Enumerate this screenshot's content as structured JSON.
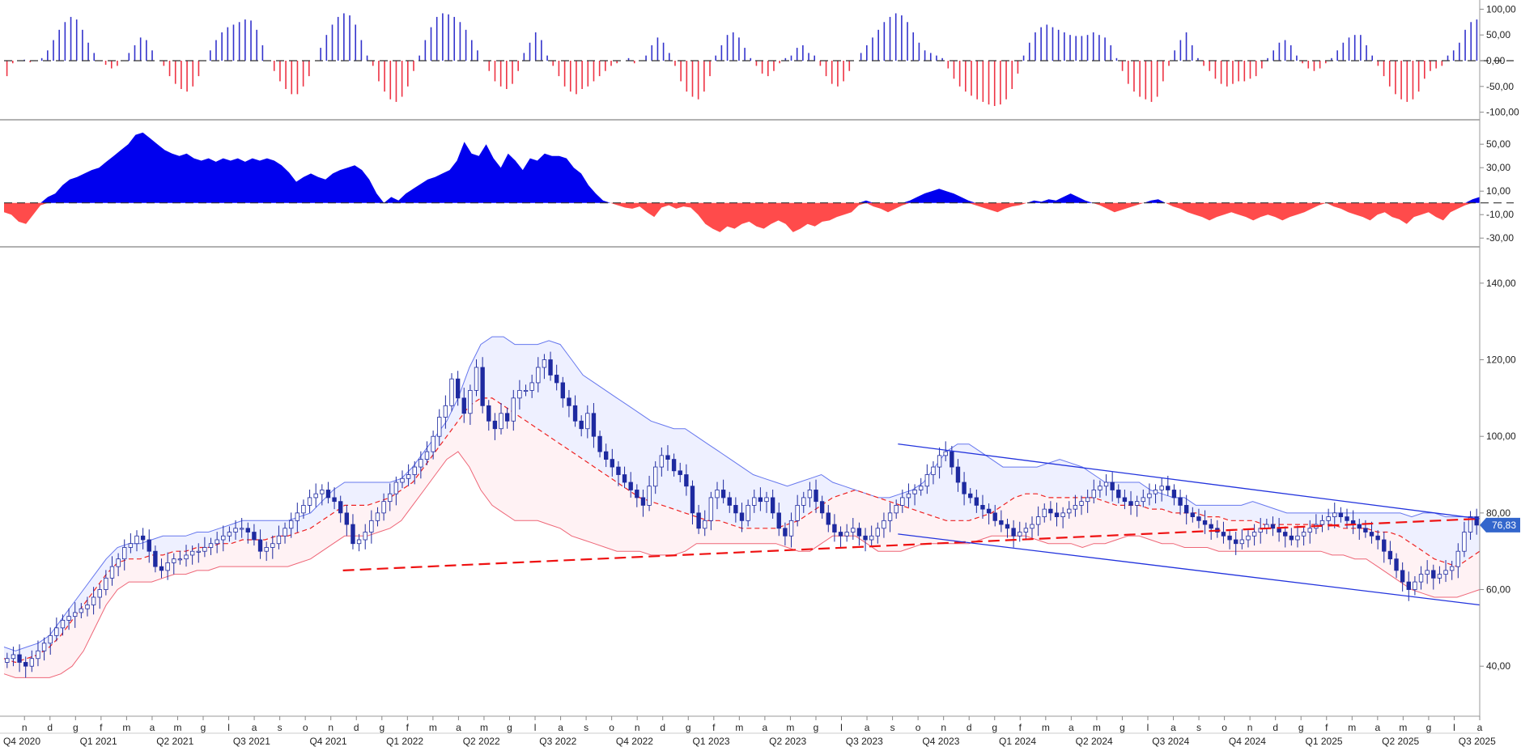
{
  "chart_data": [
    {
      "type": "bar",
      "panel": "oscillator-histogram",
      "y_ticks": [
        "100,00",
        "50,00",
        "0,00",
        "-50,00",
        "-100,00"
      ],
      "y_tick_values": [
        100,
        50,
        0,
        -50,
        -100
      ],
      "ylim": [
        -110,
        110
      ],
      "positive_color": "#3333cc",
      "negative_color": "#ee3344",
      "values": [
        -30,
        -5,
        0,
        2,
        -3,
        0,
        5,
        20,
        40,
        60,
        75,
        85,
        80,
        60,
        35,
        15,
        0,
        -8,
        -15,
        -10,
        0,
        15,
        30,
        45,
        40,
        20,
        0,
        -10,
        -30,
        -45,
        -55,
        -60,
        -50,
        -30,
        0,
        20,
        40,
        55,
        65,
        70,
        75,
        80,
        78,
        60,
        30,
        0,
        -20,
        -40,
        -55,
        -65,
        -65,
        -50,
        -30,
        0,
        25,
        50,
        70,
        85,
        92,
        88,
        70,
        40,
        10,
        -10,
        -40,
        -60,
        -75,
        -80,
        -70,
        -50,
        -20,
        10,
        40,
        65,
        85,
        92,
        90,
        85,
        75,
        60,
        40,
        20,
        0,
        -20,
        -40,
        -50,
        -55,
        -45,
        -20,
        15,
        35,
        55,
        40,
        10,
        -10,
        -30,
        -50,
        -60,
        -65,
        -55,
        -50,
        -40,
        -30,
        -20,
        -10,
        -5,
        0,
        5,
        -5,
        0,
        10,
        30,
        45,
        35,
        15,
        -10,
        -40,
        -60,
        -70,
        -75,
        -60,
        -30,
        10,
        30,
        50,
        55,
        45,
        25,
        5,
        -10,
        -25,
        -30,
        -20,
        -5,
        5,
        10,
        25,
        30,
        15,
        10,
        -10,
        -30,
        -45,
        -50,
        -40,
        -20,
        0,
        15,
        30,
        45,
        60,
        75,
        85,
        92,
        88,
        75,
        55,
        35,
        20,
        15,
        10,
        5,
        -15,
        -35,
        -50,
        -60,
        -68,
        -75,
        -80,
        -85,
        -88,
        -85,
        -75,
        -55,
        -25,
        10,
        35,
        55,
        65,
        70,
        65,
        60,
        55,
        50,
        48,
        48,
        50,
        55,
        50,
        45,
        30,
        5,
        -20,
        -45,
        -60,
        -70,
        -75,
        -80,
        -70,
        -40,
        -10,
        20,
        40,
        55,
        30,
        5,
        -10,
        -20,
        -35,
        -45,
        -50,
        -45,
        -40,
        -40,
        -35,
        -30,
        -15,
        5,
        20,
        35,
        40,
        30,
        10,
        -5,
        -15,
        -20,
        -15,
        -5,
        5,
        20,
        35,
        45,
        50,
        50,
        30,
        10,
        -10,
        -30,
        -50,
        -65,
        -75,
        -80,
        -75,
        -60,
        -35,
        -20,
        -15,
        -10,
        10,
        20,
        35,
        60,
        75,
        80
      ]
    },
    {
      "type": "area",
      "panel": "oscillator-area",
      "y_ticks": [
        "50,00",
        "30,00",
        "10,00",
        "-10,00",
        "-30,00"
      ],
      "y_tick_values": [
        50,
        30,
        10,
        -10,
        -30
      ],
      "ylim": [
        -34,
        66
      ],
      "positive_color": "#0000ee",
      "negative_color": "#ff4b4b",
      "values": [
        -8,
        -10,
        -16,
        -18,
        -10,
        -2,
        5,
        8,
        15,
        20,
        22,
        25,
        28,
        30,
        35,
        40,
        45,
        50,
        58,
        60,
        55,
        50,
        45,
        42,
        40,
        42,
        38,
        36,
        38,
        35,
        38,
        36,
        38,
        35,
        38,
        36,
        38,
        36,
        32,
        26,
        18,
        22,
        25,
        22,
        20,
        25,
        28,
        30,
        32,
        28,
        20,
        8,
        0,
        5,
        2,
        8,
        12,
        16,
        20,
        22,
        25,
        28,
        36,
        52,
        42,
        40,
        50,
        38,
        30,
        42,
        36,
        28,
        38,
        36,
        42,
        40,
        40,
        38,
        30,
        25,
        15,
        8,
        2,
        0,
        -2,
        -4,
        -5,
        -3,
        -8,
        -12,
        -4,
        -2,
        -5,
        -3,
        -4,
        -10,
        -18,
        -22,
        -25,
        -20,
        -22,
        -18,
        -16,
        -20,
        -22,
        -18,
        -15,
        -18,
        -25,
        -22,
        -18,
        -20,
        -16,
        -15,
        -12,
        -10,
        -8,
        -2,
        2,
        -3,
        -5,
        -8,
        -5,
        -2,
        2,
        5,
        8,
        10,
        12,
        10,
        8,
        5,
        2,
        -2,
        -4,
        -6,
        -8,
        -5,
        -3,
        -2,
        0,
        2,
        1,
        3,
        2,
        5,
        8,
        5,
        2,
        0,
        -2,
        -5,
        -8,
        -6,
        -4,
        -2,
        0,
        2,
        3,
        0,
        -3,
        -5,
        -8,
        -10,
        -12,
        -15,
        -12,
        -10,
        -8,
        -10,
        -12,
        -15,
        -12,
        -10,
        -12,
        -15,
        -12,
        -10,
        -8,
        -5,
        -2,
        0,
        -3,
        -5,
        -8,
        -10,
        -12,
        -15,
        -10,
        -8,
        -12,
        -14,
        -18,
        -12,
        -10,
        -8,
        -12,
        -15,
        -8,
        -5,
        -2,
        3,
        5
      ],
      "zero_line": 0
    },
    {
      "type": "candlestick",
      "panel": "price",
      "y_ticks": [
        "140,00",
        "120,00",
        "100,00",
        "80,00",
        "60,00",
        "40,00"
      ],
      "y_tick_values": [
        140,
        120,
        100,
        80,
        60,
        40
      ],
      "ylim": [
        28,
        148
      ],
      "last_price_label": "76,83",
      "last_price": 76.83,
      "up_color": "#ffffff",
      "down_color": "#1e2aa0",
      "closes": [
        42,
        43,
        41,
        40,
        42,
        44,
        46,
        48,
        50,
        52,
        53,
        54,
        55,
        56,
        58,
        60,
        63,
        66,
        68,
        71,
        72,
        74,
        73,
        70,
        66,
        65,
        67,
        68,
        68,
        69,
        70,
        70,
        71,
        72,
        73,
        74,
        75,
        76,
        76,
        75,
        73,
        70,
        71,
        72,
        74,
        76,
        78,
        80,
        82,
        84,
        85,
        86,
        84,
        83,
        80,
        77,
        72,
        73,
        75,
        78,
        80,
        83,
        85,
        88,
        89,
        90,
        92,
        94,
        96,
        100,
        105,
        108,
        115,
        110,
        106,
        112,
        118,
        108,
        104,
        102,
        106,
        104,
        110,
        112,
        112,
        114,
        118,
        120,
        116,
        114,
        110,
        108,
        104,
        102,
        106,
        100,
        96,
        94,
        92,
        90,
        88,
        86,
        84,
        82,
        87,
        92,
        95,
        94,
        91,
        90,
        87,
        80,
        76,
        78,
        84,
        86,
        84,
        82,
        80,
        78,
        82,
        84,
        83,
        84,
        80,
        76,
        74,
        78,
        82,
        84,
        86,
        83,
        80,
        77,
        75,
        74,
        75,
        76,
        74,
        73,
        74,
        76,
        78,
        80,
        82,
        84,
        85,
        86,
        87,
        90,
        92,
        95,
        96,
        92,
        88,
        85,
        84,
        82,
        81,
        80,
        78,
        77,
        76,
        74,
        75,
        76,
        77,
        79,
        81,
        80,
        79,
        80,
        81,
        82,
        83,
        84,
        86,
        87,
        88,
        86,
        84,
        83,
        82,
        83,
        84,
        85,
        86,
        87,
        86,
        84,
        82,
        80,
        79,
        78,
        77,
        76,
        75,
        74,
        73,
        72,
        73,
        74,
        75,
        76,
        77,
        76,
        75,
        74,
        73,
        74,
        75,
        76,
        77,
        78,
        79,
        80,
        79,
        78,
        77,
        76,
        75,
        74,
        73,
        70,
        68,
        65,
        62,
        60,
        62,
        64,
        65,
        63,
        64,
        65,
        66,
        70,
        75,
        79,
        76.83
      ],
      "bands": {
        "upper": [
          45,
          44,
          45,
          46,
          48,
          52,
          56,
          60,
          64,
          68,
          71,
          72,
          72,
          73,
          74,
          74,
          74,
          75,
          75,
          76,
          77,
          78,
          78,
          78,
          78,
          78,
          79,
          80,
          83,
          86,
          88,
          88,
          88,
          88,
          88,
          89,
          92,
          96,
          100,
          104,
          110,
          118,
          124,
          126,
          126,
          124,
          124,
          124,
          125,
          124,
          120,
          116,
          114,
          112,
          110,
          108,
          106,
          104,
          103,
          102,
          102,
          100,
          98,
          96,
          94,
          92,
          90,
          89,
          88,
          87,
          88,
          89,
          90,
          88,
          87,
          86,
          85,
          84,
          84,
          85,
          86,
          88,
          92,
          96,
          98,
          98,
          96,
          94,
          92,
          92,
          92,
          92,
          93,
          94,
          93,
          92,
          90,
          88,
          88,
          88,
          88,
          86,
          85,
          84,
          84,
          82,
          82,
          82,
          82,
          82,
          83,
          82,
          81,
          80,
          80,
          80,
          80,
          80,
          80,
          80,
          80,
          80,
          80,
          80,
          79,
          80,
          80,
          79,
          79,
          79,
          79
        ],
        "middle": [
          42,
          41,
          42,
          43,
          45,
          48,
          52,
          56,
          60,
          64,
          67,
          68,
          68,
          69,
          69,
          70,
          70,
          71,
          71,
          72,
          72,
          73,
          73,
          73,
          74,
          74,
          75,
          76,
          78,
          80,
          82,
          82,
          82,
          83,
          84,
          86,
          88,
          92,
          96,
          100,
          104,
          108,
          110,
          110,
          108,
          106,
          104,
          102,
          100,
          98,
          96,
          94,
          92,
          90,
          88,
          86,
          84,
          83,
          82,
          81,
          80,
          79,
          78,
          78,
          77,
          76,
          76,
          76,
          76,
          77,
          78,
          80,
          82,
          84,
          85,
          86,
          85,
          84,
          83,
          82,
          81,
          80,
          79,
          78,
          78,
          78,
          79,
          80,
          82,
          84,
          85,
          85,
          84,
          84,
          84,
          84,
          84,
          83,
          82,
          82,
          82,
          81,
          81,
          80,
          80,
          80,
          79,
          79,
          78,
          78,
          78,
          77,
          77,
          77,
          77,
          77,
          77,
          77,
          76,
          76,
          76,
          75,
          75,
          74,
          72,
          70,
          68,
          67,
          66,
          68,
          70
        ],
        "lower": [
          38,
          37,
          37,
          37,
          37,
          38,
          40,
          44,
          50,
          56,
          60,
          62,
          62,
          62,
          63,
          64,
          64,
          65,
          65,
          66,
          66,
          66,
          66,
          66,
          66,
          66,
          67,
          68,
          70,
          72,
          74,
          74,
          74,
          75,
          76,
          78,
          82,
          86,
          90,
          94,
          96,
          92,
          86,
          82,
          80,
          78,
          78,
          78,
          77,
          76,
          74,
          73,
          72,
          71,
          70,
          70,
          70,
          69,
          69,
          69,
          70,
          72,
          72,
          72,
          72,
          72,
          72,
          72,
          72,
          71,
          70,
          70,
          72,
          74,
          74,
          74,
          72,
          70,
          70,
          70,
          71,
          72,
          72,
          72,
          72,
          72,
          73,
          74,
          74,
          74,
          74,
          73,
          72,
          72,
          72,
          71,
          72,
          72,
          73,
          74,
          74,
          73,
          72,
          72,
          71,
          71,
          71,
          70,
          70,
          70,
          70,
          70,
          70,
          70,
          70,
          70,
          70,
          69,
          69,
          68,
          68,
          66,
          64,
          62,
          60,
          59,
          58,
          58,
          58,
          59,
          60
        ]
      },
      "trendlines": [
        {
          "kind": "dashed-support",
          "color": "#ee1111",
          "from": {
            "x": "2021-12-06",
            "y": 65
          },
          "to": {
            "x": "2025-08-29",
            "y": 78.5
          }
        },
        {
          "kind": "channel-upper",
          "color": "#2233dd",
          "from": {
            "x": "2023-10-02",
            "y": 98
          },
          "to": {
            "x": "2025-08-29",
            "y": 78.5
          }
        },
        {
          "kind": "channel-lower",
          "color": "#2233dd",
          "from": {
            "x": "2023-10-02",
            "y": 74.5
          },
          "to": {
            "x": "2025-08-29",
            "y": 56
          }
        }
      ]
    }
  ],
  "x_axis": {
    "month_labels": [
      "n",
      "d",
      "g",
      "f",
      "m",
      "a",
      "m",
      "g",
      "l",
      "a",
      "s",
      "o",
      "n",
      "d",
      "g",
      "f",
      "m",
      "a",
      "m",
      "g",
      "l",
      "a",
      "s",
      "o",
      "n",
      "d",
      "g",
      "f",
      "m",
      "a",
      "m",
      "g",
      "l",
      "a",
      "s",
      "o",
      "n",
      "d",
      "g",
      "f",
      "m",
      "a",
      "m",
      "g",
      "l",
      "a",
      "s",
      "o",
      "n",
      "d",
      "g",
      "f",
      "m",
      "a",
      "m",
      "g",
      "l",
      "a"
    ],
    "quarter_labels": [
      "Q4 2020",
      "Q1 2021",
      "Q2 2021",
      "Q3 2021",
      "Q4 2021",
      "Q1 2022",
      "Q2 2022",
      "Q3 2022",
      "Q4 2022",
      "Q1 2023",
      "Q2 2023",
      "Q3 2023",
      "Q4 2023",
      "Q1 2024",
      "Q2 2024",
      "Q3 2024",
      "Q4 2024",
      "Q1 2025",
      "Q2 2025",
      "Q3 2025"
    ]
  },
  "colors": {
    "band_upper_fill": "#eef0ff",
    "band_lower_fill": "#fff2f4",
    "band_upper_line": "#6677ee",
    "band_lower_line": "#ee6677",
    "ma_line": "#ee2222",
    "panel_border": "#999999",
    "last_price_bg": "#3366cc"
  }
}
